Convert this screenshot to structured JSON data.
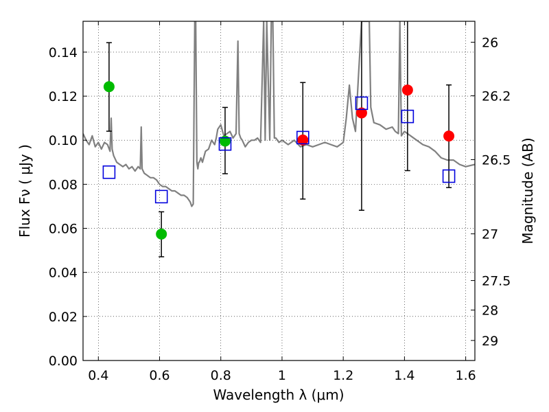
{
  "chart_data": {
    "type": "scatter",
    "title": "",
    "xlabel": "Wavelength  λ (μm)",
    "ylabel": "Flux  Fν  ( μJy )",
    "y2label": "Magnitude (AB)",
    "xlim": [
      0.35,
      1.63
    ],
    "ylim": [
      0.0,
      0.154
    ],
    "grid": true,
    "x_ticks": [
      {
        "value": 0.4,
        "label": "0.4"
      },
      {
        "value": 0.6,
        "label": "0.6"
      },
      {
        "value": 0.8,
        "label": "0.8"
      },
      {
        "value": 1.0,
        "label": "1"
      },
      {
        "value": 1.2,
        "label": "1.2"
      },
      {
        "value": 1.4,
        "label": "1.4"
      },
      {
        "value": 1.6,
        "label": "1.6"
      }
    ],
    "y_ticks": [
      {
        "value": 0.0,
        "label": "0.00"
      },
      {
        "value": 0.02,
        "label": "0.02"
      },
      {
        "value": 0.04,
        "label": "0.04"
      },
      {
        "value": 0.06,
        "label": "0.06"
      },
      {
        "value": 0.08,
        "label": "0.08"
      },
      {
        "value": 0.1,
        "label": "0.10"
      },
      {
        "value": 0.12,
        "label": "0.12"
      },
      {
        "value": 0.14,
        "label": "0.14"
      }
    ],
    "y2_ticks": [
      {
        "flux": 0.1445,
        "label": "26"
      },
      {
        "flux": 0.1202,
        "label": "26.2"
      },
      {
        "flux": 0.0912,
        "label": "26.5"
      },
      {
        "flux": 0.0575,
        "label": "27"
      },
      {
        "flux": 0.0363,
        "label": "27.5"
      },
      {
        "flux": 0.0229,
        "label": "28"
      },
      {
        "flux": 0.0091,
        "label": "29"
      }
    ],
    "series": [
      {
        "name": "observed-green",
        "color": "#00bb00",
        "marker": "circle",
        "points": [
          {
            "x": 0.435,
            "y": 0.1243,
            "err_lo": 0.1041,
            "err_hi": 0.1443
          },
          {
            "x": 0.606,
            "y": 0.0574,
            "err_lo": 0.0471,
            "err_hi": 0.0675
          },
          {
            "x": 0.814,
            "y": 0.0996,
            "err_lo": 0.0848,
            "err_hi": 0.1149
          }
        ]
      },
      {
        "name": "observed-red",
        "color": "#ff0000",
        "marker": "circle",
        "points": [
          {
            "x": 1.068,
            "y": 0.1001,
            "err_lo": 0.0733,
            "err_hi": 0.1262
          },
          {
            "x": 1.26,
            "y": 0.1124,
            "err_lo": 0.0682,
            "err_hi": 0.1541
          },
          {
            "x": 1.41,
            "y": 0.1228,
            "err_lo": 0.0862,
            "err_hi": 0.1541
          },
          {
            "x": 1.545,
            "y": 0.1019,
            "err_lo": 0.0785,
            "err_hi": 0.1251
          }
        ]
      },
      {
        "name": "model-synthetic",
        "color": "#0000dd",
        "marker": "square-open",
        "points": [
          {
            "x": 0.435,
            "y": 0.0855
          },
          {
            "x": 0.606,
            "y": 0.0744
          },
          {
            "x": 0.814,
            "y": 0.0983
          },
          {
            "x": 1.068,
            "y": 0.1012
          },
          {
            "x": 1.26,
            "y": 0.1168
          },
          {
            "x": 1.41,
            "y": 0.1108
          },
          {
            "x": 1.545,
            "y": 0.0837
          }
        ]
      }
    ],
    "spectrum": {
      "name": "model-spectrum",
      "color": "#808080",
      "x": [
        0.35,
        0.36,
        0.37,
        0.38,
        0.39,
        0.4,
        0.41,
        0.42,
        0.43,
        0.438,
        0.442,
        0.445,
        0.45,
        0.46,
        0.47,
        0.48,
        0.49,
        0.5,
        0.51,
        0.52,
        0.53,
        0.537,
        0.54,
        0.543,
        0.55,
        0.56,
        0.57,
        0.58,
        0.59,
        0.6,
        0.61,
        0.62,
        0.63,
        0.64,
        0.65,
        0.66,
        0.67,
        0.68,
        0.69,
        0.7,
        0.705,
        0.71,
        0.715,
        0.718,
        0.722,
        0.725,
        0.728,
        0.73,
        0.735,
        0.74,
        0.75,
        0.76,
        0.77,
        0.78,
        0.785,
        0.79,
        0.8,
        0.81,
        0.82,
        0.83,
        0.84,
        0.85,
        0.856,
        0.86,
        0.865,
        0.87,
        0.88,
        0.89,
        0.9,
        0.91,
        0.92,
        0.93,
        0.94,
        0.945,
        0.95,
        0.96,
        0.965,
        0.97,
        0.975,
        0.98,
        0.99,
        1.0,
        1.02,
        1.04,
        1.06,
        1.08,
        1.1,
        1.12,
        1.14,
        1.16,
        1.18,
        1.2,
        1.21,
        1.22,
        1.23,
        1.24,
        1.25,
        1.26,
        1.265,
        1.27,
        1.275,
        1.28,
        1.285,
        1.29,
        1.3,
        1.32,
        1.34,
        1.36,
        1.37,
        1.38,
        1.385,
        1.39,
        1.4,
        1.42,
        1.44,
        1.46,
        1.48,
        1.5,
        1.52,
        1.54,
        1.56,
        1.58,
        1.6,
        1.63
      ],
      "y": [
        0.103,
        0.1,
        0.098,
        0.102,
        0.097,
        0.099,
        0.096,
        0.099,
        0.098,
        0.095,
        0.11,
        0.096,
        0.093,
        0.09,
        0.089,
        0.088,
        0.089,
        0.087,
        0.088,
        0.086,
        0.088,
        0.087,
        0.106,
        0.087,
        0.085,
        0.084,
        0.083,
        0.083,
        0.082,
        0.08,
        0.079,
        0.079,
        0.078,
        0.077,
        0.077,
        0.076,
        0.075,
        0.075,
        0.074,
        0.072,
        0.07,
        0.071,
        0.154,
        0.154,
        0.09,
        0.087,
        0.09,
        0.09,
        0.092,
        0.09,
        0.095,
        0.096,
        0.1,
        0.098,
        0.101,
        0.105,
        0.107,
        0.102,
        0.103,
        0.104,
        0.101,
        0.103,
        0.145,
        0.103,
        0.101,
        0.1,
        0.097,
        0.099,
        0.1,
        0.1,
        0.101,
        0.099,
        0.154,
        0.1,
        0.154,
        0.1,
        0.154,
        0.154,
        0.101,
        0.101,
        0.099,
        0.1,
        0.098,
        0.1,
        0.097,
        0.098,
        0.097,
        0.098,
        0.099,
        0.098,
        0.097,
        0.099,
        0.11,
        0.125,
        0.11,
        0.104,
        0.13,
        0.154,
        0.154,
        0.154,
        0.154,
        0.154,
        0.154,
        0.115,
        0.108,
        0.107,
        0.105,
        0.106,
        0.104,
        0.103,
        0.154,
        0.102,
        0.104,
        0.102,
        0.1,
        0.098,
        0.097,
        0.095,
        0.092,
        0.091,
        0.091,
        0.089,
        0.088,
        0.089
      ]
    }
  }
}
